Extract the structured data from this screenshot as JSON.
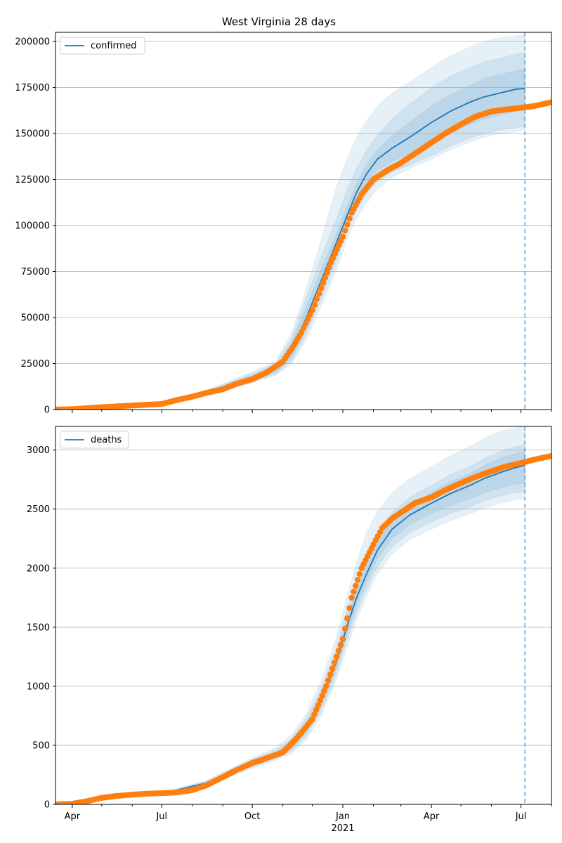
{
  "title": "West Virginia 28 days",
  "chart_data": [
    {
      "type": "line",
      "legend": "confirmed",
      "legend_position": "top-left",
      "grid": "horizontal",
      "ylim": [
        0,
        205000
      ],
      "xlim": [
        "2020-03-15",
        "2021-08-01"
      ],
      "forecast_line_date": "2021-07-05",
      "yticks": [
        0,
        25000,
        50000,
        75000,
        100000,
        125000,
        150000,
        175000,
        200000
      ],
      "ytick_labels": [
        "0",
        "25000",
        "50000",
        "75000",
        "100000",
        "125000",
        "150000",
        "175000",
        "200000"
      ],
      "forecast_dates": [
        "2020-03-15",
        "2020-05-01",
        "2020-07-01",
        "2020-08-15",
        "2020-10-01",
        "2020-10-25",
        "2020-11-10",
        "2020-11-25",
        "2020-12-10",
        "2020-12-25",
        "2021-01-05",
        "2021-01-15",
        "2021-01-25",
        "2021-02-05",
        "2021-02-20",
        "2021-03-10",
        "2021-04-01",
        "2021-04-20",
        "2021-05-10",
        "2021-05-25",
        "2021-06-10",
        "2021-06-25",
        "2021-07-05"
      ],
      "forecast_median": [
        0,
        1200,
        3000,
        9000,
        17000,
        22000,
        32000,
        50000,
        70000,
        90000,
        105000,
        118000,
        128000,
        136000,
        142000,
        148000,
        156000,
        162000,
        167000,
        170000,
        172000,
        174000,
        174500
      ],
      "band_50": {
        "lower": [
          0,
          1100,
          2800,
          8600,
          16000,
          20500,
          28000,
          44000,
          64000,
          86000,
          102000,
          114000,
          123000,
          130000,
          135000,
          139000,
          145000,
          150000,
          155000,
          158000,
          160000,
          162000,
          163000
        ],
        "upper": [
          0,
          1300,
          3200,
          9600,
          18500,
          23500,
          36000,
          56000,
          76000,
          95000,
          110000,
          123000,
          133000,
          141000,
          149000,
          156000,
          165000,
          171000,
          176000,
          180000,
          182000,
          184000,
          185000
        ]
      },
      "band_80": {
        "lower": [
          0,
          1000,
          2600,
          8200,
          15200,
          19500,
          26500,
          41000,
          60000,
          80000,
          97000,
          108000,
          117000,
          124000,
          129000,
          133000,
          138000,
          143000,
          147500,
          150000,
          152000,
          153000,
          154000
        ],
        "upper": [
          0,
          1400,
          3400,
          10000,
          19500,
          25000,
          39000,
          61000,
          83000,
          103000,
          119000,
          131000,
          141000,
          149000,
          158000,
          166000,
          175000,
          181000,
          186000,
          189000,
          191000,
          193000,
          194000
        ]
      },
      "band_95": {
        "lower": [
          0,
          900,
          2400,
          7800,
          14500,
          18500,
          25000,
          38000,
          56000,
          75000,
          92000,
          104000,
          112000,
          120000,
          126000,
          131000,
          136000,
          141000,
          145500,
          148000,
          150000,
          151000,
          152000
        ],
        "upper": [
          0,
          1500,
          3600,
          10500,
          20500,
          26500,
          42000,
          66000,
          92000,
          120000,
          136000,
          148000,
          157000,
          165000,
          172000,
          178000,
          186000,
          192000,
          197000,
          200000,
          202000,
          203000,
          204000
        ]
      },
      "observed_dates": [
        "2020-03-15",
        "2020-04-01",
        "2020-05-01",
        "2020-06-01",
        "2020-07-01",
        "2020-07-15",
        "2020-08-01",
        "2020-08-15",
        "2020-09-01",
        "2020-09-15",
        "2020-10-01",
        "2020-10-15",
        "2020-11-01",
        "2020-11-10",
        "2020-11-20",
        "2020-12-01",
        "2020-12-10",
        "2020-12-20",
        "2021-01-01",
        "2021-01-10",
        "2021-01-20",
        "2021-02-01",
        "2021-02-15",
        "2021-03-01",
        "2021-03-15",
        "2021-04-01",
        "2021-04-15",
        "2021-05-01",
        "2021-05-15",
        "2021-06-01",
        "2021-06-15",
        "2021-07-01",
        "2021-07-15",
        "2021-08-01"
      ],
      "observed_values": [
        0,
        200,
        1300,
        2200,
        3000,
        5000,
        7000,
        9000,
        11000,
        14000,
        16500,
        20000,
        26000,
        33000,
        42000,
        54000,
        66000,
        80000,
        94000,
        107000,
        117000,
        125000,
        130000,
        134000,
        139000,
        145000,
        150000,
        155000,
        159000,
        162000,
        163000,
        164000,
        165000,
        167000
      ]
    },
    {
      "type": "line",
      "legend": "deaths",
      "legend_position": "top-left",
      "grid": "horizontal",
      "ylim": [
        0,
        3200
      ],
      "xlim": [
        "2020-03-15",
        "2021-08-01"
      ],
      "forecast_line_date": "2021-07-05",
      "yticks": [
        0,
        500,
        1000,
        1500,
        2000,
        2500,
        3000
      ],
      "ytick_labels": [
        "0",
        "500",
        "1000",
        "1500",
        "2000",
        "2500",
        "3000"
      ],
      "xtick_dates": [
        "2020-04-01",
        "2020-07-01",
        "2020-10-01",
        "2021-01-01",
        "2021-04-01",
        "2021-07-01"
      ],
      "xtick_labels": [
        "Apr",
        "Jul",
        "Oct",
        "Jan",
        "Apr",
        "Jul"
      ],
      "xtick_year_label": "2021",
      "forecast_dates": [
        "2020-03-15",
        "2020-05-01",
        "2020-07-01",
        "2020-08-15",
        "2020-10-01",
        "2020-10-25",
        "2020-11-10",
        "2020-11-25",
        "2020-12-10",
        "2020-12-25",
        "2021-01-05",
        "2021-01-15",
        "2021-01-25",
        "2021-02-05",
        "2021-02-20",
        "2021-03-10",
        "2021-04-01",
        "2021-04-20",
        "2021-05-10",
        "2021-05-25",
        "2021-06-10",
        "2021-06-25",
        "2021-07-05"
      ],
      "forecast_median": [
        0,
        50,
        90,
        180,
        350,
        420,
        500,
        650,
        880,
        1200,
        1500,
        1750,
        1950,
        2150,
        2330,
        2450,
        2550,
        2630,
        2700,
        2760,
        2810,
        2850,
        2870
      ],
      "band_50": {
        "lower": [
          0,
          48,
          86,
          172,
          335,
          400,
          470,
          610,
          830,
          1140,
          1430,
          1680,
          1880,
          2080,
          2250,
          2370,
          2460,
          2530,
          2590,
          2640,
          2680,
          2710,
          2720
        ],
        "upper": [
          0,
          52,
          94,
          188,
          365,
          440,
          530,
          690,
          930,
          1260,
          1570,
          1830,
          2030,
          2230,
          2400,
          2530,
          2640,
          2730,
          2800,
          2870,
          2930,
          2970,
          2990
        ]
      },
      "band_80": {
        "lower": [
          0,
          46,
          83,
          165,
          320,
          385,
          450,
          580,
          790,
          1090,
          1380,
          1620,
          1820,
          2010,
          2180,
          2300,
          2390,
          2460,
          2520,
          2570,
          2610,
          2640,
          2650
        ],
        "upper": [
          0,
          54,
          97,
          195,
          380,
          460,
          560,
          730,
          980,
          1320,
          1640,
          1900,
          2110,
          2300,
          2470,
          2600,
          2700,
          2790,
          2860,
          2930,
          2990,
          3030,
          3050
        ]
      },
      "band_95": {
        "lower": [
          0,
          44,
          80,
          158,
          305,
          370,
          430,
          550,
          750,
          1040,
          1320,
          1560,
          1760,
          1950,
          2120,
          2240,
          2330,
          2400,
          2460,
          2510,
          2550,
          2580,
          2590
        ],
        "upper": [
          0,
          56,
          100,
          202,
          395,
          480,
          590,
          770,
          1050,
          1400,
          1750,
          2050,
          2300,
          2480,
          2640,
          2760,
          2860,
          2950,
          3030,
          3100,
          3160,
          3190,
          3200
        ]
      },
      "observed_dates": [
        "2020-03-15",
        "2020-04-01",
        "2020-04-15",
        "2020-05-01",
        "2020-05-15",
        "2020-06-01",
        "2020-06-15",
        "2020-07-01",
        "2020-07-15",
        "2020-08-01",
        "2020-08-15",
        "2020-09-01",
        "2020-09-15",
        "2020-10-01",
        "2020-10-15",
        "2020-11-01",
        "2020-11-15",
        "2020-12-01",
        "2020-12-15",
        "2021-01-01",
        "2021-01-10",
        "2021-01-20",
        "2021-02-01",
        "2021-02-10",
        "2021-02-20",
        "2021-03-01",
        "2021-03-15",
        "2021-04-01",
        "2021-04-15",
        "2021-05-01",
        "2021-05-15",
        "2021-06-01",
        "2021-06-15",
        "2021-07-01",
        "2021-07-15",
        "2021-08-01"
      ],
      "observed_values": [
        0,
        5,
        25,
        55,
        70,
        82,
        90,
        95,
        100,
        120,
        160,
        230,
        290,
        350,
        390,
        440,
        560,
        720,
        1000,
        1400,
        1750,
        2000,
        2200,
        2340,
        2420,
        2470,
        2550,
        2600,
        2660,
        2720,
        2770,
        2820,
        2860,
        2890,
        2920,
        2950
      ]
    }
  ]
}
